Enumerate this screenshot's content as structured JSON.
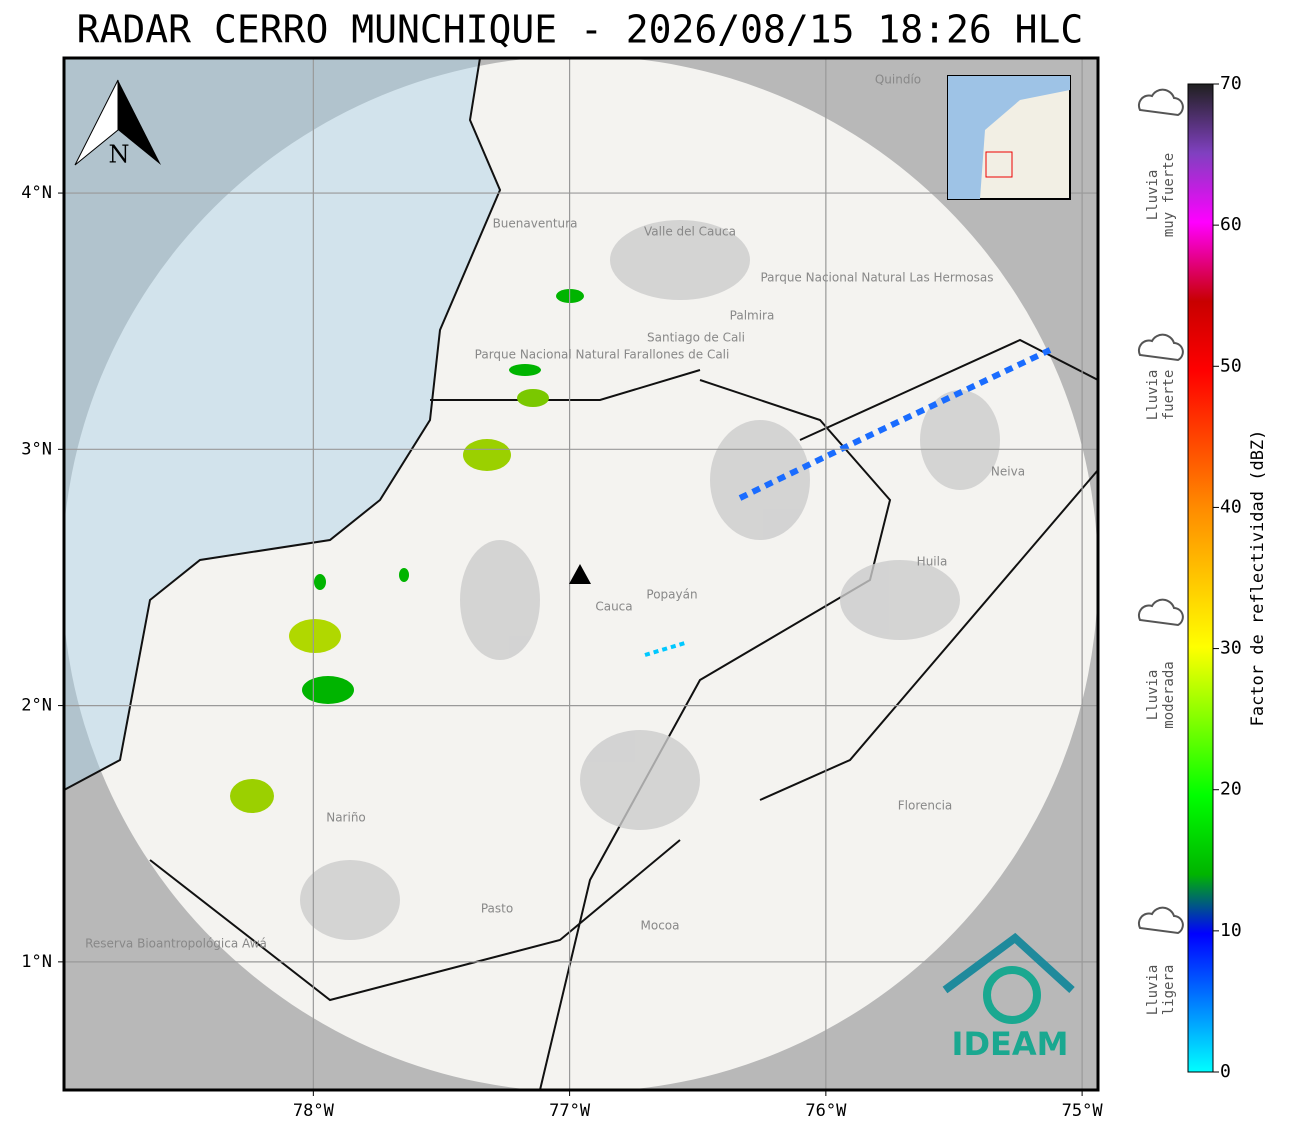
{
  "header": {
    "title": "RADAR CERRO MUNCHIQUE - 2026/08/15 18:26 HLC"
  },
  "map": {
    "xlim": [
      -78.973,
      -74.938
    ],
    "ylim": [
      0.5,
      4.527
    ],
    "xticks": [
      {
        "value": -78,
        "label": "78°W"
      },
      {
        "value": -77,
        "label": "77°W"
      },
      {
        "value": -76,
        "label": "76°W"
      },
      {
        "value": -75,
        "label": "75°W"
      }
    ],
    "yticks": [
      {
        "value": 1,
        "label": "1°N"
      },
      {
        "value": 2,
        "label": "2°N"
      },
      {
        "value": 3,
        "label": "3°N"
      },
      {
        "value": 4,
        "label": "4°N"
      }
    ],
    "north": "N",
    "places": [
      "Buenaventura",
      "Valle del Cauca",
      "Parque Nacional Natural Farallones de Cali",
      "Santiago de Cali",
      "Palmira",
      "Parque Nacional Natural Las Hermosas",
      "Cauca",
      "Popayán",
      "Huila",
      "Neiva",
      "Nariño",
      "Florencia",
      "Pasto",
      "Mocoa",
      "Reserva Bioantropológica Awá",
      "Quindío"
    ],
    "logo": "IDEAM"
  },
  "colorbar": {
    "label": "Factor de reflectividad (dBZ)",
    "lim": [
      0,
      70
    ],
    "ticks": [
      0,
      10,
      20,
      30,
      40,
      50,
      60,
      70
    ]
  },
  "legend": [
    [
      "Lluvia",
      "muy fuerte"
    ],
    [
      "Lluvia",
      "fuerte"
    ],
    [
      "Lluvia",
      "moderada"
    ],
    [
      "Lluvia",
      "ligera"
    ]
  ]
}
